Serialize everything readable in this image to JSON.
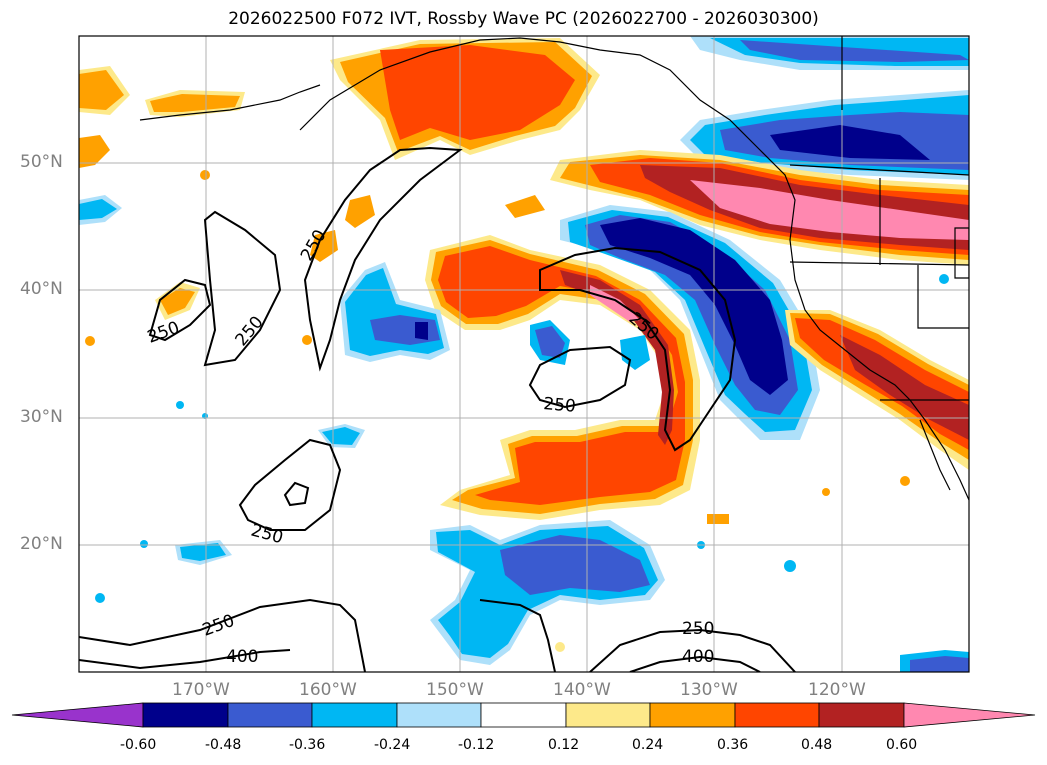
{
  "title": "2026022500 F072 IVT, Rossby Wave PC (2026022700 - 2026030300)",
  "latitude_labels": [
    "50°N",
    "40°N",
    "30°N",
    "20°N"
  ],
  "longitude_labels": [
    "170°W",
    "160°W",
    "150°W",
    "140°W",
    "130°W",
    "120°W"
  ],
  "contour_labels": [
    "250",
    "250",
    "250",
    "250",
    "250",
    "250",
    "250",
    "250",
    "400",
    "400"
  ],
  "colorbar": {
    "ticks": [
      "-0.60",
      "-0.48",
      "-0.36",
      "-0.24",
      "-0.12",
      "0.12",
      "0.24",
      "0.36",
      "0.48",
      "0.60"
    ],
    "colors": {
      "extend_low": "#9933cc",
      "c1": "#00008b",
      "c2": "#3a5bd0",
      "c3": "#00b7f3",
      "c4": "#aee0fa",
      "c5": "#ffffff",
      "c6": "#fde98a",
      "c7": "#ffa100",
      "c8": "#ff4500",
      "c9": "#b22222",
      "extend_high": "#ff88b0"
    }
  }
}
